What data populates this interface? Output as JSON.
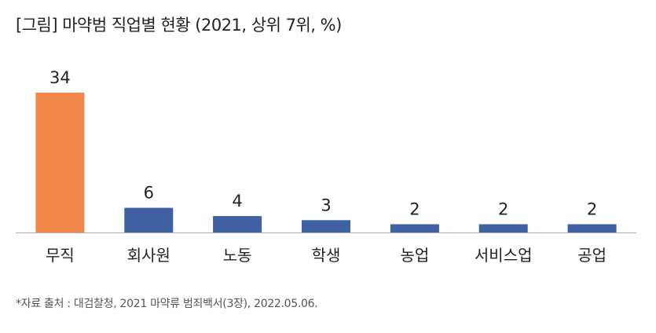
{
  "title": "[그림] 마약범 직업별 현황 (2021, 상위 7위, %)",
  "source": "*자료 출처 : 대검찰청, 2021 마약류 범죄백서(3장), 2022.05.06.",
  "chart_data": {
    "type": "bar",
    "title": "[그림] 마약범 직업별 현황 (2021, 상위 7위, %)",
    "categories": [
      "무직",
      "회사원",
      "노동",
      "학생",
      "농업",
      "서비스업",
      "공업"
    ],
    "values": [
      34,
      6,
      4,
      3,
      2,
      2,
      2
    ],
    "data_labels": [
      "34",
      "6",
      "4",
      "3",
      "2",
      "2",
      "2"
    ],
    "unit": "%",
    "xlabel": "",
    "ylabel": "",
    "ylim": [
      0,
      34
    ],
    "grid": false,
    "legend": "none",
    "colors": {
      "highlight": "#F0864A",
      "default": "#3F60A3",
      "axis": "#B0B0B0"
    },
    "highlight_index": 0
  }
}
